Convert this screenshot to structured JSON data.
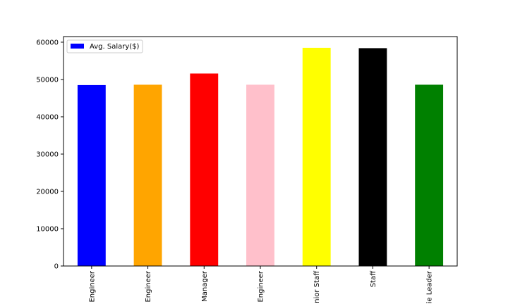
{
  "chart_data": {
    "type": "bar",
    "categories": [
      "Engineer",
      "Engineer",
      "Manager",
      "Engineer",
      "nior Staff",
      "Staff",
      "ie Leader"
    ],
    "series": [
      {
        "name": "Avg. Salary($)",
        "values": [
          48500,
          48600,
          51600,
          48600,
          58500,
          58400,
          48600
        ]
      }
    ],
    "colors": [
      "#0000ff",
      "#ffa500",
      "#ff0000",
      "#ffc0cb",
      "#ffff00",
      "#000000",
      "#008000"
    ],
    "legend_color": "#0000ff",
    "ylim": [
      0,
      61500
    ],
    "yticks": [
      0,
      10000,
      20000,
      30000,
      40000,
      50000,
      60000
    ],
    "ytick_labels": [
      "0",
      "10000",
      "20000",
      "30000",
      "40000",
      "50000",
      "60000"
    ],
    "legend": {
      "placement": "top-left",
      "label": "Avg. Salary($)"
    },
    "grid": false
  }
}
